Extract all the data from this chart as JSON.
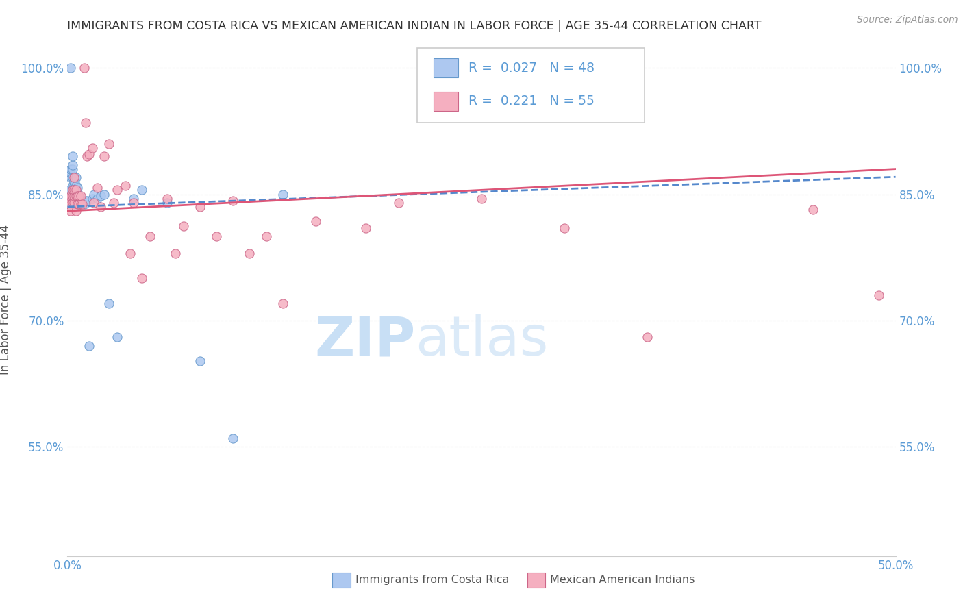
{
  "title": "IMMIGRANTS FROM COSTA RICA VS MEXICAN AMERICAN INDIAN IN LABOR FORCE | AGE 35-44 CORRELATION CHART",
  "source": "Source: ZipAtlas.com",
  "ylabel": "In Labor Force | Age 35-44",
  "yticks": [
    0.55,
    0.7,
    0.85,
    1.0
  ],
  "ytick_labels": [
    "55.0%",
    "70.0%",
    "85.0%",
    "100.0%"
  ],
  "blue_R": 0.027,
  "blue_N": 48,
  "pink_R": 0.221,
  "pink_N": 55,
  "blue_color": "#adc8f0",
  "pink_color": "#f5afc0",
  "blue_edge_color": "#6699cc",
  "pink_edge_color": "#cc6688",
  "blue_line_color": "#5588cc",
  "pink_line_color": "#dd5577",
  "axis_color": "#5b9bd5",
  "title_color": "#333333",
  "watermark_color": "#ddeeff",
  "grid_color": "#cccccc",
  "background_color": "#ffffff",
  "xlim": [
    0.0,
    0.5
  ],
  "ylim": [
    0.42,
    1.03
  ],
  "blue_x": [
    0.001,
    0.001,
    0.002,
    0.002,
    0.002,
    0.002,
    0.003,
    0.003,
    0.003,
    0.003,
    0.003,
    0.004,
    0.004,
    0.004,
    0.004,
    0.004,
    0.004,
    0.005,
    0.005,
    0.005,
    0.005,
    0.005,
    0.006,
    0.006,
    0.006,
    0.006,
    0.007,
    0.007,
    0.008,
    0.008,
    0.009,
    0.01,
    0.011,
    0.012,
    0.013,
    0.015,
    0.016,
    0.018,
    0.02,
    0.022,
    0.025,
    0.03,
    0.04,
    0.045,
    0.06,
    0.08,
    0.1,
    0.13
  ],
  "blue_y": [
    0.845,
    0.855,
    0.87,
    0.875,
    0.88,
    1.0,
    0.86,
    0.87,
    0.88,
    0.885,
    0.895,
    0.835,
    0.845,
    0.85,
    0.855,
    0.86,
    0.865,
    0.84,
    0.848,
    0.855,
    0.86,
    0.87,
    0.842,
    0.848,
    0.852,
    0.858,
    0.838,
    0.845,
    0.838,
    0.845,
    0.84,
    0.838,
    0.842,
    0.842,
    0.67,
    0.845,
    0.85,
    0.845,
    0.848,
    0.85,
    0.72,
    0.68,
    0.845,
    0.855,
    0.84,
    0.652,
    0.56,
    0.85
  ],
  "pink_x": [
    0.001,
    0.001,
    0.002,
    0.002,
    0.003,
    0.003,
    0.003,
    0.004,
    0.004,
    0.004,
    0.004,
    0.005,
    0.005,
    0.005,
    0.006,
    0.006,
    0.007,
    0.007,
    0.008,
    0.008,
    0.009,
    0.01,
    0.011,
    0.012,
    0.013,
    0.015,
    0.016,
    0.018,
    0.02,
    0.022,
    0.025,
    0.028,
    0.03,
    0.035,
    0.038,
    0.04,
    0.045,
    0.05,
    0.06,
    0.065,
    0.07,
    0.08,
    0.09,
    0.1,
    0.11,
    0.12,
    0.13,
    0.15,
    0.18,
    0.2,
    0.25,
    0.3,
    0.35,
    0.45,
    0.49
  ],
  "pink_y": [
    0.838,
    0.845,
    0.83,
    0.848,
    0.84,
    0.848,
    0.855,
    0.84,
    0.848,
    0.855,
    0.87,
    0.83,
    0.848,
    0.855,
    0.838,
    0.848,
    0.838,
    0.848,
    0.838,
    0.848,
    0.838,
    1.0,
    0.935,
    0.895,
    0.898,
    0.905,
    0.84,
    0.858,
    0.835,
    0.895,
    0.91,
    0.84,
    0.855,
    0.86,
    0.78,
    0.84,
    0.75,
    0.8,
    0.845,
    0.78,
    0.812,
    0.835,
    0.8,
    0.842,
    0.78,
    0.8,
    0.72,
    0.818,
    0.81,
    0.84,
    0.845,
    0.81,
    0.68,
    0.832,
    0.73
  ]
}
